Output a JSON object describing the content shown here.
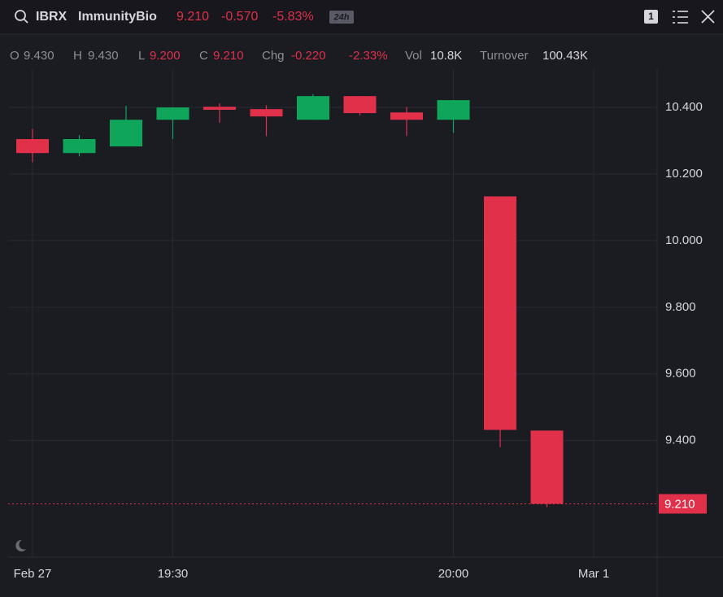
{
  "header": {
    "ticker": "IBRX",
    "company": "ImmunityBio",
    "price": "9.210",
    "change": "-0.570",
    "change_pct": "-5.83%",
    "session": "24h",
    "layout_count": "1"
  },
  "ohlc_bar": {
    "open_label": "O",
    "open": "9.430",
    "high_label": "H",
    "high": "9.430",
    "low_label": "L",
    "low": "9.200",
    "close_label": "C",
    "close": "9.210",
    "chg_label": "Chg",
    "chg": "-0.220",
    "chg_pct": "-2.33%",
    "vol_label": "Vol",
    "vol": "10.8K",
    "turnover_label": "Turnover",
    "turnover": "100.43K"
  },
  "chart_data": {
    "type": "candlestick",
    "categories": [
      "Feb 27",
      null,
      null,
      "19:30",
      null,
      null,
      null,
      null,
      null,
      "20:00",
      null,
      null,
      "Mar 1"
    ],
    "open": [
      10.305,
      10.263,
      10.283,
      10.363,
      10.402,
      10.395,
      10.363,
      10.434,
      10.385,
      10.363,
      10.133,
      9.43,
      null
    ],
    "high": [
      10.336,
      10.317,
      10.405,
      10.4,
      10.412,
      10.407,
      10.44,
      10.434,
      10.402,
      10.422,
      10.133,
      9.43,
      null
    ],
    "low": [
      10.236,
      10.253,
      10.283,
      10.305,
      10.354,
      10.314,
      10.363,
      10.376,
      10.314,
      10.324,
      9.38,
      9.2,
      null
    ],
    "close": [
      10.263,
      10.305,
      10.363,
      10.4,
      10.393,
      10.373,
      10.434,
      10.383,
      10.363,
      10.422,
      9.432,
      9.21,
      null
    ],
    "up_color": "#0fa55a",
    "down_color": "#e0304a",
    "ylim": [
      9.05,
      10.515
    ],
    "yticks": [
      {
        "value": 9.4,
        "label": "9.400"
      },
      {
        "value": 9.6,
        "label": "9.600"
      },
      {
        "value": 9.8,
        "label": "9.800"
      },
      {
        "value": 10.0,
        "label": "10.000"
      },
      {
        "value": 10.2,
        "label": "10.200"
      },
      {
        "value": 10.4,
        "label": "10.400"
      }
    ],
    "price_line": {
      "value": 9.21,
      "label": "9.210"
    },
    "grid": true
  }
}
